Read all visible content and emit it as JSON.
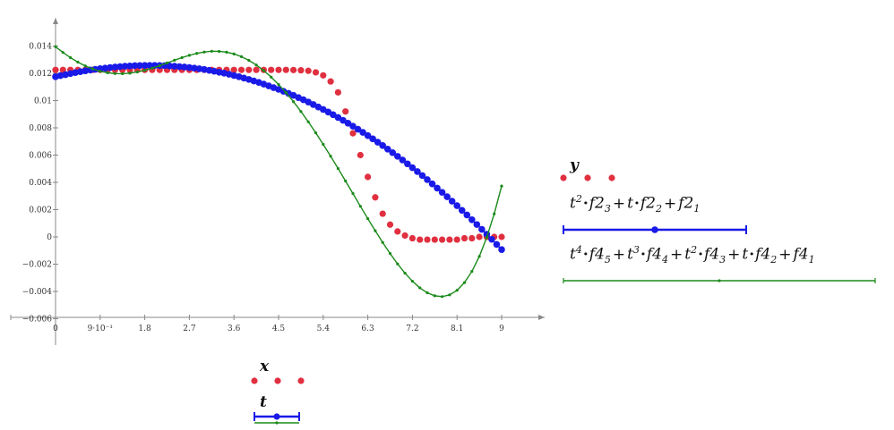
{
  "chart_data": {
    "type": "scatter",
    "xlim": [
      -0.6,
      11.0
    ],
    "ylim": [
      -0.0068,
      0.0163
    ],
    "x_ticks": [
      0,
      0.9,
      1.8,
      2.7,
      3.6,
      4.5,
      5.4,
      6.3,
      7.2,
      8.1,
      9
    ],
    "x_tick_labels": [
      "0",
      "9·10⁻¹",
      "1.8",
      "2.7",
      "3.6",
      "4.5",
      "5.4",
      "6.3",
      "7.2",
      "8.1",
      "9"
    ],
    "y_ticks": [
      -0.006,
      -0.004,
      -0.002,
      0,
      0.002,
      0.004,
      0.006,
      0.008,
      0.01,
      0.012,
      0.014
    ],
    "y_tick_labels": [
      "−0.006",
      "−0.004",
      "−0.002",
      "0",
      "0.002",
      "0.004",
      "0.006",
      "0.008",
      "0.01",
      "0.012",
      "0.014"
    ],
    "grid": false,
    "xlabel": "x",
    "xlabel2": "t",
    "series": [
      {
        "name": "y",
        "style": "markers",
        "color": "#e03040",
        "marker_size": 3.6,
        "x": [
          0,
          0.15,
          0.3,
          0.45,
          0.6,
          0.75,
          0.9,
          1.05,
          1.2,
          1.35,
          1.5,
          1.65,
          1.8,
          1.95,
          2.1,
          2.25,
          2.4,
          2.55,
          2.7,
          2.85,
          3.0,
          3.15,
          3.3,
          3.45,
          3.6,
          3.75,
          3.9,
          4.05,
          4.2,
          4.35,
          4.5,
          4.65,
          4.8,
          4.95,
          5.1,
          5.25,
          5.4,
          5.55,
          5.7,
          5.85,
          6.0,
          6.15,
          6.3,
          6.45,
          6.6,
          6.75,
          6.9,
          7.05,
          7.2,
          7.35,
          7.5,
          7.65,
          7.8,
          7.95,
          8.1,
          8.25,
          8.4,
          8.55,
          8.7,
          8.85,
          9.0
        ],
        "y": [
          0.01225,
          0.01225,
          0.01225,
          0.01225,
          0.01225,
          0.01225,
          0.01225,
          0.01225,
          0.01225,
          0.01225,
          0.01225,
          0.01225,
          0.01225,
          0.01225,
          0.01225,
          0.01225,
          0.01225,
          0.01225,
          0.01225,
          0.01225,
          0.01225,
          0.01225,
          0.01225,
          0.01225,
          0.01225,
          0.01225,
          0.01225,
          0.01225,
          0.01225,
          0.01225,
          0.01225,
          0.01225,
          0.01224,
          0.01222,
          0.01218,
          0.01207,
          0.01185,
          0.0114,
          0.0106,
          0.0092,
          0.0076,
          0.006,
          0.0044,
          0.0029,
          0.0017,
          0.0009,
          0.0004,
          0.0001,
          -0.0001,
          -0.0002,
          -0.0002,
          -0.0002,
          -0.0002,
          -0.0002,
          -0.0002,
          -0.0001,
          -0.0001,
          0,
          0,
          0,
          0
        ]
      },
      {
        "name": "t²·f2₃+t·f2₂+f2₁",
        "style": "line-markers",
        "color": "#1a1ae8",
        "marker_size": 3.8,
        "x": [
          0,
          0.1,
          0.2,
          0.3,
          0.4,
          0.5,
          0.6,
          0.7,
          0.8,
          0.9,
          1.0,
          1.1,
          1.2,
          1.3,
          1.4,
          1.5,
          1.6,
          1.7,
          1.8,
          1.9,
          2.0,
          2.1,
          2.2,
          2.3,
          2.4,
          2.5,
          2.6,
          2.7,
          2.8,
          2.9,
          3.0,
          3.1,
          3.2,
          3.3,
          3.4,
          3.5,
          3.6,
          3.7,
          3.8,
          3.9,
          4.0,
          4.1,
          4.2,
          4.3,
          4.4,
          4.5,
          4.6,
          4.7,
          4.8,
          4.9,
          5.0,
          5.1,
          5.2,
          5.3,
          5.4,
          5.5,
          5.6,
          5.7,
          5.8,
          5.9,
          6.0,
          6.1,
          6.2,
          6.3,
          6.4,
          6.5,
          6.6,
          6.7,
          6.8,
          6.9,
          7.0,
          7.1,
          7.2,
          7.3,
          7.4,
          7.5,
          7.6,
          7.7,
          7.8,
          7.9,
          8.0,
          8.1,
          8.2,
          8.3,
          8.4,
          8.5,
          8.6,
          8.7,
          8.8,
          8.9,
          9.0
        ],
        "y": [
          0.01175,
          0.01183,
          0.0119,
          0.01198,
          0.01205,
          0.01212,
          0.01218,
          0.01224,
          0.01229,
          0.01234,
          0.01238,
          0.01242,
          0.01246,
          0.01249,
          0.01252,
          0.01254,
          0.01256,
          0.01257,
          0.01258,
          0.01258,
          0.01258,
          0.01257,
          0.01256,
          0.01254,
          0.01252,
          0.01249,
          0.01246,
          0.01242,
          0.01238,
          0.01233,
          0.01228,
          0.01222,
          0.01215,
          0.01208,
          0.01201,
          0.01193,
          0.01184,
          0.01175,
          0.01165,
          0.01155,
          0.01144,
          0.01133,
          0.01121,
          0.01108,
          0.01095,
          0.01082,
          0.01068,
          0.01053,
          0.01038,
          0.01022,
          0.01006,
          0.00989,
          0.00971,
          0.00953,
          0.00935,
          0.00916,
          0.00896,
          0.00876,
          0.00855,
          0.00834,
          0.00812,
          0.0079,
          0.00767,
          0.00743,
          0.00719,
          0.00695,
          0.0067,
          0.00644,
          0.00618,
          0.00591,
          0.00564,
          0.00536,
          0.00508,
          0.00479,
          0.0045,
          0.0042,
          0.00389,
          0.00358,
          0.00327,
          0.00295,
          0.00262,
          0.00229,
          0.00195,
          0.00161,
          0.00126,
          0.00091,
          0.00055,
          0.00019,
          -0.00018,
          -0.00055,
          -0.00093
        ]
      },
      {
        "name": "t⁴·f4₅+t³·f4₄+t²·f4₃+t·f4₂+f4₁",
        "style": "line-markers",
        "color": "#1a8a1a",
        "marker_size": 1.6,
        "x": [
          0,
          0.15,
          0.3,
          0.45,
          0.6,
          0.75,
          0.9,
          1.05,
          1.2,
          1.35,
          1.5,
          1.65,
          1.8,
          1.95,
          2.1,
          2.25,
          2.4,
          2.55,
          2.7,
          2.85,
          3.0,
          3.15,
          3.3,
          3.45,
          3.6,
          3.75,
          3.9,
          4.05,
          4.2,
          4.35,
          4.5,
          4.65,
          4.8,
          4.95,
          5.1,
          5.25,
          5.4,
          5.55,
          5.7,
          5.85,
          6.0,
          6.15,
          6.3,
          6.45,
          6.6,
          6.75,
          6.9,
          7.05,
          7.2,
          7.35,
          7.5,
          7.65,
          7.8,
          7.95,
          8.1,
          8.25,
          8.4,
          8.55,
          8.7,
          8.85,
          9.0
        ],
        "y": [
          0.01395,
          0.01353,
          0.01315,
          0.01282,
          0.01254,
          0.01232,
          0.01215,
          0.01204,
          0.01198,
          0.01197,
          0.01201,
          0.0121,
          0.01222,
          0.01238,
          0.01256,
          0.01276,
          0.01296,
          0.01315,
          0.01332,
          0.01346,
          0.01356,
          0.01362,
          0.01361,
          0.01355,
          0.01342,
          0.01322,
          0.01295,
          0.01261,
          0.0122,
          0.01172,
          0.01118,
          0.01058,
          0.00992,
          0.0092,
          0.00844,
          0.00763,
          0.00679,
          0.00592,
          0.00502,
          0.0041,
          0.00318,
          0.00225,
          0.00134,
          0.00045,
          -0.00041,
          -0.00122,
          -0.00198,
          -0.00266,
          -0.00325,
          -0.00374,
          -0.0041,
          -0.00432,
          -0.00438,
          -0.00425,
          -0.00392,
          -0.00335,
          -0.00253,
          -0.00143,
          -3e-05,
          0.00169,
          0.00373
        ]
      }
    ]
  },
  "legend": {
    "right": {
      "y_label": "y",
      "blue_expr": {
        "t": "t",
        "sq": "2",
        "f": "f2",
        "s3": "3",
        "plus1": "+",
        "t2": "t",
        "f2": "f2",
        "s2": "2",
        "plus2": "+",
        "f3": "f2",
        "s1": "1"
      },
      "green_expr": {
        "t1": "t",
        "p4": "4",
        "fa": "f4",
        "a5": "5",
        "plus1": "+",
        "t2": "t",
        "p3": "3",
        "fb": "f4",
        "b4": "4",
        "plus2": "+",
        "t3": "t",
        "p2": "2",
        "fc": "f4",
        "c3": "3",
        "plus3": "+",
        "t4": "t",
        "fd": "f4",
        "d2": "2",
        "plus4": "+",
        "fe": "f4",
        "e1": "1"
      }
    },
    "bottom": {
      "x_label": "x",
      "t_label": "t"
    }
  }
}
